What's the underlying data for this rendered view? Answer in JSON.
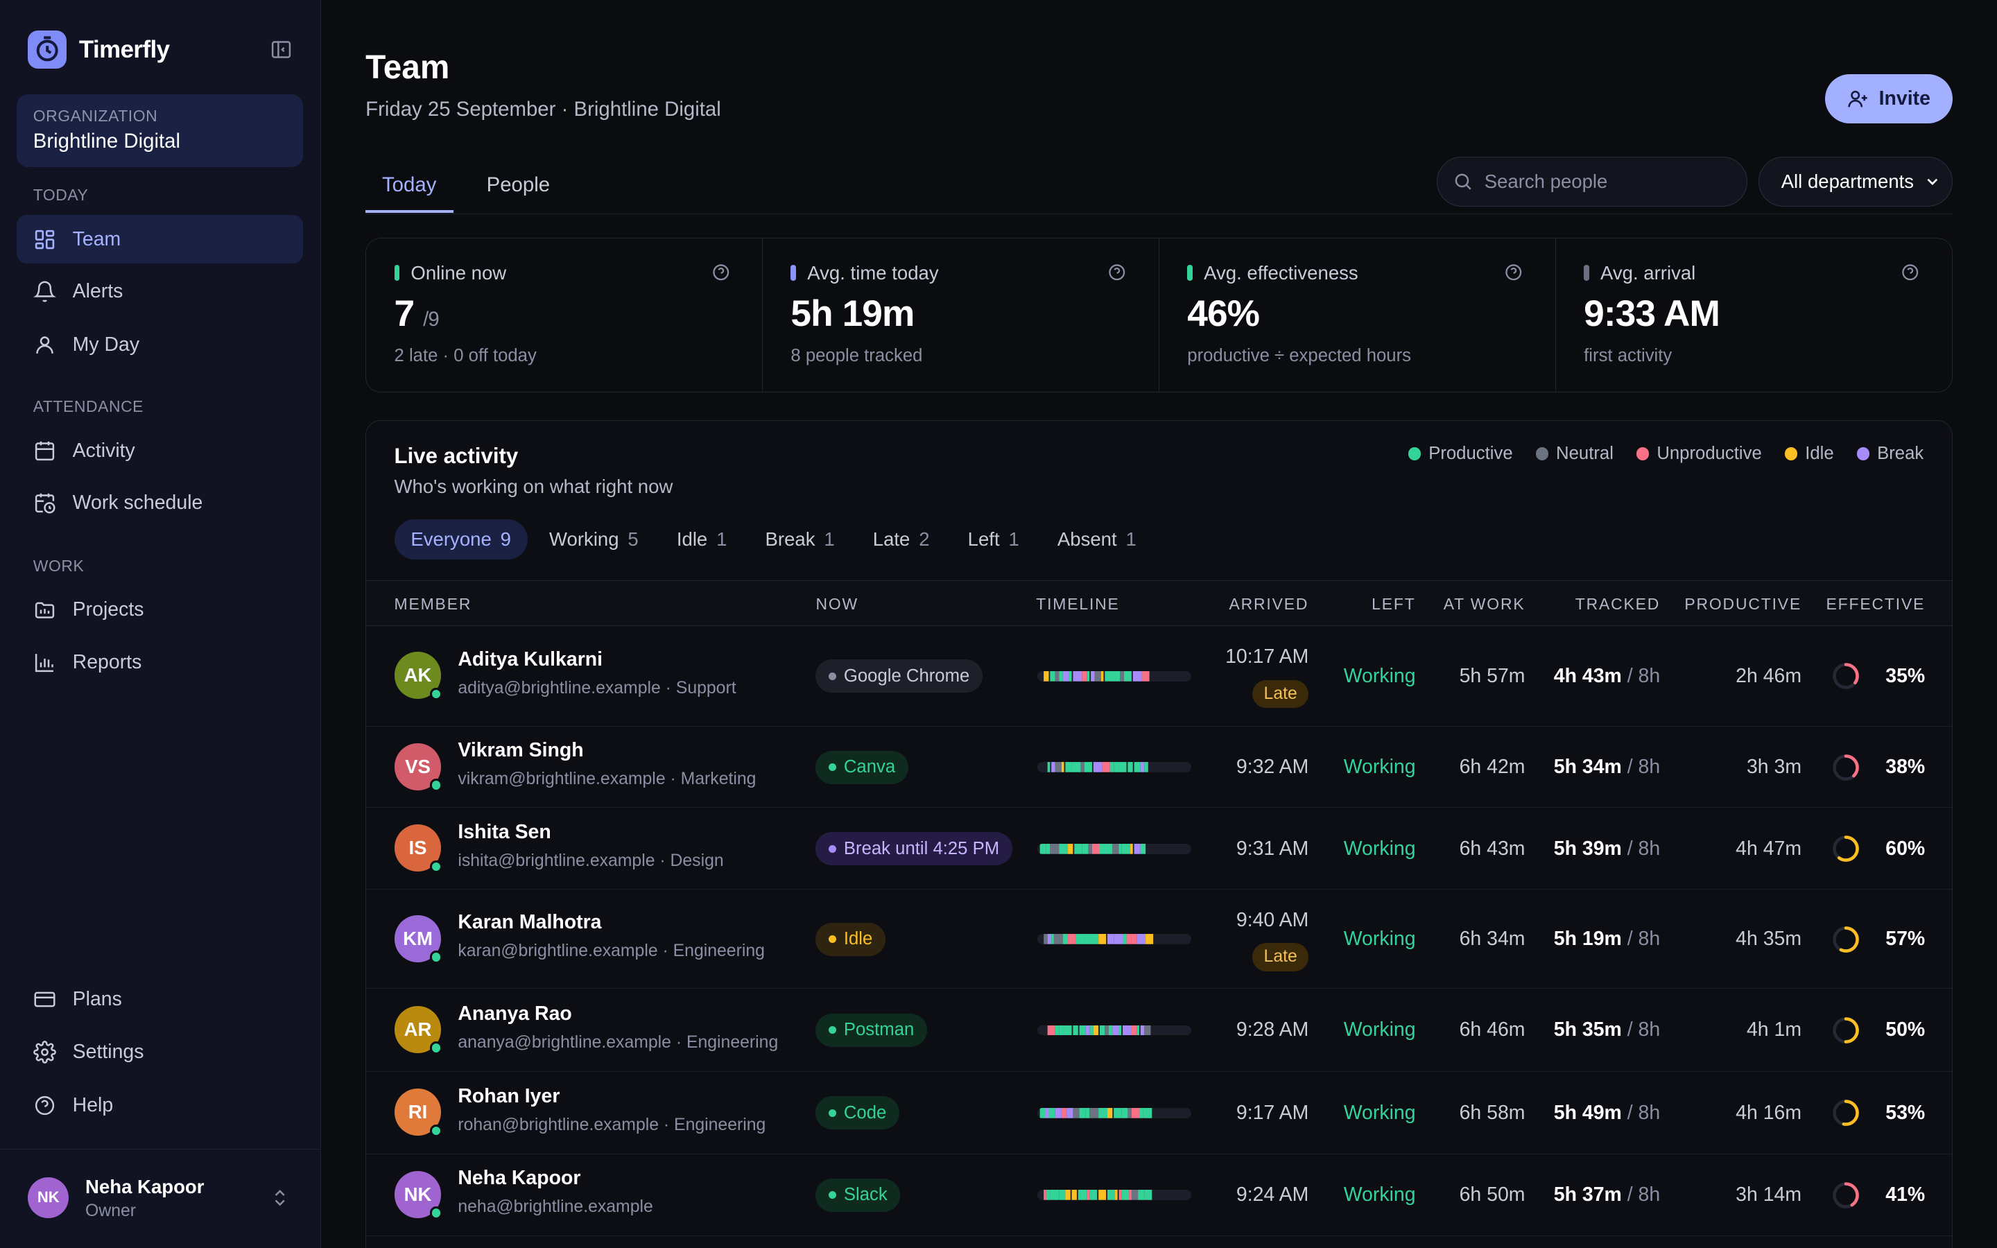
{
  "app": {
    "name": "Timerfly"
  },
  "organization": {
    "label": "ORGANIZATION",
    "name": "Brightline Digital"
  },
  "sidebar": {
    "sections": [
      {
        "label": "TODAY",
        "items": [
          {
            "label": "Team",
            "icon": "grid-icon",
            "active": true
          },
          {
            "label": "Alerts",
            "icon": "bell-icon"
          },
          {
            "label": "My Day",
            "icon": "user-icon"
          }
        ]
      },
      {
        "label": "ATTENDANCE",
        "items": [
          {
            "label": "Activity",
            "icon": "calendar-icon"
          },
          {
            "label": "Work schedule",
            "icon": "calendar-clock-icon"
          }
        ]
      },
      {
        "label": "WORK",
        "items": [
          {
            "label": "Projects",
            "icon": "folder-icon"
          },
          {
            "label": "Reports",
            "icon": "bar-chart-icon"
          }
        ]
      }
    ],
    "bottom_items": [
      {
        "label": "Plans",
        "icon": "credit-card-icon"
      },
      {
        "label": "Settings",
        "icon": "gear-icon"
      },
      {
        "label": "Help",
        "icon": "help-circle-icon"
      }
    ],
    "user": {
      "initials": "NK",
      "name": "Neha Kapoor",
      "role": "Owner"
    }
  },
  "header": {
    "title": "Team",
    "subtitle": "Friday 25 September · Brightline Digital",
    "invite_label": "Invite"
  },
  "tabs": [
    {
      "label": "Today",
      "active": true
    },
    {
      "label": "People"
    }
  ],
  "search": {
    "placeholder": "Search people"
  },
  "department_filter": {
    "selected": "All departments"
  },
  "stats": [
    {
      "label": "Online now",
      "value": "7",
      "suffix": "/9",
      "sub": "2 late · 0 off today",
      "accent": "#34d399"
    },
    {
      "label": "Avg. time today",
      "value": "5h 19m",
      "sub": "8 people tracked",
      "accent": "#8b93f8"
    },
    {
      "label": "Avg. effectiveness",
      "value": "46%",
      "sub": "productive ÷ expected hours",
      "accent": "#34d399"
    },
    {
      "label": "Avg. arrival",
      "value": "9:33 AM",
      "sub": "first activity",
      "accent": "#6b7080"
    }
  ],
  "live_activity": {
    "title": "Live activity",
    "subtitle": "Who's working on what right now",
    "legend": [
      {
        "label": "Productive",
        "color": "#34d399"
      },
      {
        "label": "Neutral",
        "color": "#6b7280"
      },
      {
        "label": "Unproductive",
        "color": "#f87186"
      },
      {
        "label": "Idle",
        "color": "#fbbf24"
      },
      {
        "label": "Break",
        "color": "#a78bfa"
      }
    ],
    "filters": [
      {
        "label": "Everyone",
        "count": "9",
        "active": true
      },
      {
        "label": "Working",
        "count": "5"
      },
      {
        "label": "Idle",
        "count": "1"
      },
      {
        "label": "Break",
        "count": "1"
      },
      {
        "label": "Late",
        "count": "2"
      },
      {
        "label": "Left",
        "count": "1"
      },
      {
        "label": "Absent",
        "count": "1"
      }
    ],
    "columns": [
      "MEMBER",
      "NOW",
      "TIMELINE",
      "ARRIVED",
      "LEFT",
      "AT WORK",
      "TRACKED",
      "PRODUCTIVE",
      "EFFECTIVE"
    ],
    "members": [
      {
        "initials": "AK",
        "avatar_color": "#6d8a1f",
        "name": "Aditya Kulkarni",
        "sub": "aditya@brightline.example · Support",
        "now": "Google Chrome",
        "now_kind": "neutral",
        "arrived": "10:17 AM",
        "late": "Late",
        "left": "Working",
        "at_work": "5h 57m",
        "tracked": "4h 43m",
        "tracked_of": "/ 8h",
        "productive": "2h 46m",
        "effective": "35%",
        "effective_value": 0.35,
        "timeline_seed": 1
      },
      {
        "initials": "VS",
        "avatar_color": "#d25b6a",
        "name": "Vikram Singh",
        "sub": "vikram@brightline.example · Marketing",
        "now": "Canva",
        "now_kind": "productive",
        "arrived": "9:32 AM",
        "left": "Working",
        "at_work": "6h 42m",
        "tracked": "5h 34m",
        "tracked_of": "/ 8h",
        "productive": "3h 3m",
        "effective": "38%",
        "effective_value": 0.38,
        "timeline_seed": 2
      },
      {
        "initials": "IS",
        "avatar_color": "#d9663d",
        "name": "Ishita Sen",
        "sub": "ishita@brightline.example · Design",
        "now": "Break until 4:25 PM",
        "now_kind": "break",
        "arrived": "9:31 AM",
        "left": "Working",
        "at_work": "6h 43m",
        "tracked": "5h 39m",
        "tracked_of": "/ 8h",
        "productive": "4h 47m",
        "effective": "60%",
        "effective_value": 0.6,
        "timeline_seed": 3
      },
      {
        "initials": "KM",
        "avatar_color": "#9a6ad9",
        "name": "Karan Malhotra",
        "sub": "karan@brightline.example · Engineering",
        "now": "Idle",
        "now_kind": "idle",
        "arrived": "9:40 AM",
        "late": "Late",
        "left": "Working",
        "at_work": "6h 34m",
        "tracked": "5h 19m",
        "tracked_of": "/ 8h",
        "productive": "4h 35m",
        "effective": "57%",
        "effective_value": 0.57,
        "timeline_seed": 4
      },
      {
        "initials": "AR",
        "avatar_color": "#b98a0e",
        "name": "Ananya Rao",
        "sub": "ananya@brightline.example · Engineering",
        "now": "Postman",
        "now_kind": "productive",
        "arrived": "9:28 AM",
        "left": "Working",
        "at_work": "6h 46m",
        "tracked": "5h 35m",
        "tracked_of": "/ 8h",
        "productive": "4h 1m",
        "effective": "50%",
        "effective_value": 0.5,
        "timeline_seed": 5
      },
      {
        "initials": "RI",
        "avatar_color": "#e07a3a",
        "name": "Rohan Iyer",
        "sub": "rohan@brightline.example · Engineering",
        "now": "Code",
        "now_kind": "productive",
        "arrived": "9:17 AM",
        "left": "Working",
        "at_work": "6h 58m",
        "tracked": "5h 49m",
        "tracked_of": "/ 8h",
        "productive": "4h 16m",
        "effective": "53%",
        "effective_value": 0.53,
        "timeline_seed": 6
      },
      {
        "initials": "NK",
        "avatar_color": "#a064d0",
        "name": "Neha Kapoor",
        "sub": "neha@brightline.example",
        "now": "Slack",
        "now_kind": "productive",
        "arrived": "9:24 AM",
        "left": "Working",
        "at_work": "6h 50m",
        "tracked": "5h 37m",
        "tracked_of": "/ 8h",
        "productive": "3h 14m",
        "effective": "41%",
        "effective_value": 0.41,
        "timeline_seed": 7
      }
    ]
  }
}
